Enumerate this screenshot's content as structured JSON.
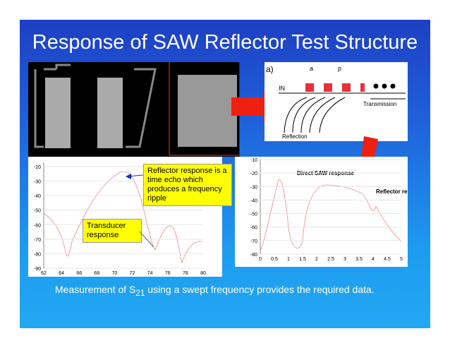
{
  "title": "Response of SAW Reflector Test Structure",
  "diagram": {
    "panel": "a)",
    "a": "a",
    "p": "p",
    "input": "IN",
    "transmission": "Transmission",
    "reflection": "Reflection"
  },
  "plot_left": {
    "yticks": [
      "-20",
      "-30",
      "-40",
      "-50",
      "-60",
      "-70",
      "-80",
      "-90"
    ],
    "xticks": [
      "62",
      "64",
      "66",
      "68",
      "70",
      "72",
      "74",
      "76",
      "78",
      "80"
    ],
    "callout_reflector": "Reflector response is a time echo which produces a frequency ripple",
    "callout_transducer": "Transducer response"
  },
  "plot_right": {
    "yticks": [
      "-10",
      "-20",
      "-30",
      "-40",
      "-50",
      "-60",
      "-70",
      "-80"
    ],
    "xticks": [
      "0",
      "0.5",
      "1",
      "1.5",
      "2",
      "2.5",
      "3",
      "3.5",
      "4",
      "4.5",
      "5"
    ],
    "annotation_direct": "Direct SAW response",
    "annotation_reflector": "Reflector response"
  },
  "caption": {
    "before": "Measurement of S",
    "subscript": "21",
    "after": " using a swept frequency provides the required data."
  }
}
